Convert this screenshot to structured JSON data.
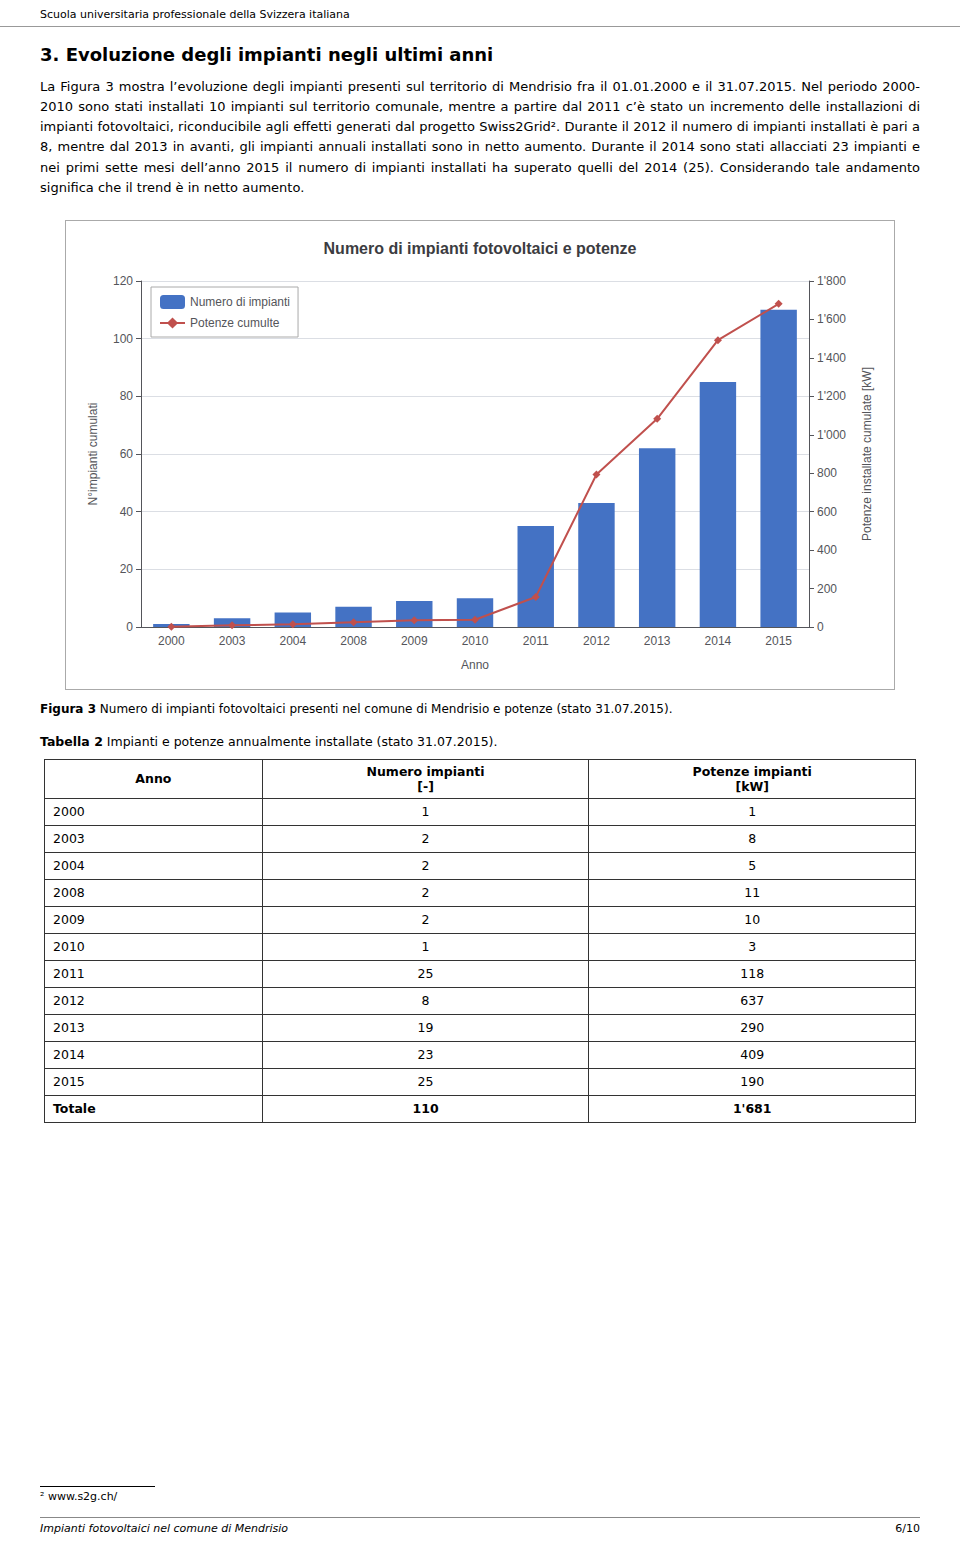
{
  "page_title": "Scuola universitaria professionale della Svizzera italiana",
  "section_title": "3.  Evoluzione degli impianti negli ultimi anni",
  "body_text": "La Figura 3 mostra l’evoluzione degli impianti presenti sul territorio di Mendrisio fra il 01.01.2000 e il 31.07.2015. Nel periodo 2000-2010 sono stati installati 10 impianti sul territorio comunale, mentre a partire dal 2011 c’è stato un incremento delle installazioni di impianti fotovoltaici, riconducibile agli effetti generati dal progetto Swiss2Grid². Durante il 2012 il numero di impianti installati è pari a 8, mentre dal 2013 in avanti, gli impianti annuali installati sono in netto aumento. Durante il 2014 sono stati allacciati 23 impianti e nei primi sette mesi dell’anno 2015 il numero di impianti installati ha superato quelli del 2014 (25). Considerando tale andamento significa che il trend è in netto aumento.",
  "chart_data": {
    "type": "bar",
    "title": "Numero di impianti fotovoltaici e potenze",
    "categories": [
      "2000",
      "2003",
      "2004",
      "2008",
      "2009",
      "2010",
      "2011",
      "2012",
      "2013",
      "2014",
      "2015"
    ],
    "series": [
      {
        "name": "Numero di impianti",
        "type": "bar",
        "color": "#4472C4",
        "values": [
          1,
          3,
          5,
          7,
          9,
          10,
          35,
          43,
          62,
          85,
          110
        ]
      },
      {
        "name": "Potenze cumulte",
        "type": "line",
        "axis": "y2",
        "color": "#C0504D",
        "marker": "diamond",
        "values": [
          1,
          9,
          14,
          25,
          35,
          38,
          156,
          793,
          1083,
          1492,
          1681
        ]
      }
    ],
    "xlabel": "Anno",
    "ylabel": "N°impianti cumulati",
    "y2label": "Potenze installate cumulate [kW]",
    "ylim": [
      0,
      120
    ],
    "yticks": [
      0,
      20,
      40,
      60,
      80,
      100,
      120
    ],
    "y2lim": [
      0,
      1800
    ],
    "y2ticks": [
      0,
      200,
      400,
      600,
      800,
      {
        "value": 1000,
        "label": "1'000"
      },
      {
        "value": 1200,
        "label": "1'200"
      },
      {
        "value": 1400,
        "label": "1'400"
      },
      {
        "value": 1600,
        "label": "1'600"
      },
      {
        "value": 1800,
        "label": "1'800"
      }
    ],
    "grid": true,
    "legend": "upper left"
  },
  "figure_caption_label": "Figura 3",
  "figure_caption": "Numero di impianti fotovoltaici presenti nel comune di Mendrisio e potenze (stato 31.07.2015).",
  "table_caption_label": "Tabella 2",
  "table_caption": "Impianti e potenze annualmente installate (stato 31.07.2015).",
  "table": {
    "headers": [
      "Anno",
      "Numero impianti\n[-]",
      "Potenze impianti\n[kW]"
    ],
    "rows": [
      [
        "2000",
        "1",
        "1"
      ],
      [
        "2003",
        "2",
        "8"
      ],
      [
        "2004",
        "2",
        "5"
      ],
      [
        "2008",
        "2",
        "11"
      ],
      [
        "2009",
        "2",
        "10"
      ],
      [
        "2010",
        "1",
        "3"
      ],
      [
        "2011",
        "25",
        "118"
      ],
      [
        "2012",
        "8",
        "637"
      ],
      [
        "2013",
        "19",
        "290"
      ],
      [
        "2014",
        "23",
        "409"
      ],
      [
        "2015",
        "25",
        "190"
      ],
      [
        "Totale",
        "110",
        "1'681"
      ]
    ]
  },
  "footnote": "² www.s2g.ch/",
  "footer_left": "Impianti fotovoltaici nel comune di Mendrisio",
  "footer_right": "6/10"
}
